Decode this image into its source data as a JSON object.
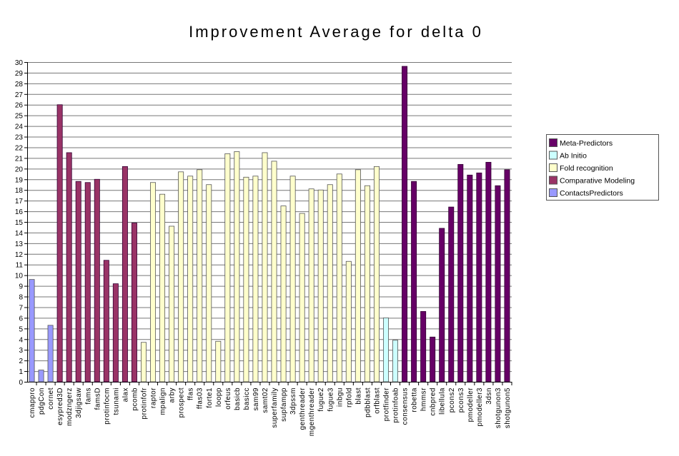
{
  "chart_data": {
    "type": "bar",
    "title": "Improvement Average for delta 0",
    "xlabel": "",
    "ylabel": "",
    "ylim": [
      0,
      30
    ],
    "ytick_step": 1,
    "grid": true,
    "legend_position": "right",
    "groups": [
      {
        "name": "Meta-Predictors",
        "color": "#660066"
      },
      {
        "name": "Ab Initio",
        "color": "#CCFFFF"
      },
      {
        "name": "Fold recognition",
        "color": "#FFFFCC"
      },
      {
        "name": "Comparative Modeling",
        "color": "#993366"
      },
      {
        "name": "ContactsPredictors",
        "color": "#9999FF"
      }
    ],
    "categories": [
      "cmappro",
      "pdgCon",
      "cornet",
      "esypred3D",
      "modzngerz",
      "3djigsaw",
      "fams",
      "famsD",
      "protinfocm",
      "tsunami",
      "alax",
      "pcomb",
      "protinfofr",
      "raptor",
      "mpalign",
      "arby",
      "prospect",
      "ffas",
      "ffas03",
      "forte1",
      "loopp",
      "orfeus",
      "basicb",
      "basicc",
      "sam99",
      "samt02",
      "superfamily",
      "supfampp",
      "3dpssm",
      "genthreader",
      "mgenthreader",
      "fugue2",
      "fugue3",
      "inbgu",
      "rpfold",
      "blast",
      "pdbblast",
      "orfblast",
      "protfinder",
      "protinfoab",
      "consensus",
      "robetta",
      "hmmsr",
      "cnbpred",
      "libellula",
      "pcons2",
      "pcons3",
      "pmodeller",
      "pmodeller3",
      "3dsn",
      "shotgunon3",
      "shotgunon5"
    ],
    "values": [
      9.6,
      1.1,
      5.3,
      26.0,
      21.5,
      18.8,
      18.7,
      19.0,
      11.4,
      9.2,
      20.2,
      14.9,
      3.7,
      18.7,
      17.6,
      14.6,
      19.7,
      19.3,
      19.9,
      18.5,
      3.8,
      21.4,
      21.6,
      19.2,
      19.3,
      21.5,
      20.7,
      16.5,
      19.3,
      15.8,
      18.1,
      18.0,
      18.5,
      19.5,
      11.3,
      19.9,
      18.4,
      20.2,
      6.0,
      3.9,
      29.6,
      18.8,
      6.6,
      4.2,
      14.4,
      16.4,
      20.4,
      19.4,
      19.6,
      20.6,
      18.4,
      19.9
    ],
    "category_groups": [
      "ContactsPredictors",
      "ContactsPredictors",
      "ContactsPredictors",
      "Comparative Modeling",
      "Comparative Modeling",
      "Comparative Modeling",
      "Comparative Modeling",
      "Comparative Modeling",
      "Comparative Modeling",
      "Comparative Modeling",
      "Comparative Modeling",
      "Comparative Modeling",
      "Fold recognition",
      "Fold recognition",
      "Fold recognition",
      "Fold recognition",
      "Fold recognition",
      "Fold recognition",
      "Fold recognition",
      "Fold recognition",
      "Fold recognition",
      "Fold recognition",
      "Fold recognition",
      "Fold recognition",
      "Fold recognition",
      "Fold recognition",
      "Fold recognition",
      "Fold recognition",
      "Fold recognition",
      "Fold recognition",
      "Fold recognition",
      "Fold recognition",
      "Fold recognition",
      "Fold recognition",
      "Fold recognition",
      "Fold recognition",
      "Fold recognition",
      "Fold recognition",
      "Ab Initio",
      "Ab Initio",
      "Meta-Predictors",
      "Meta-Predictors",
      "Meta-Predictors",
      "Meta-Predictors",
      "Meta-Predictors",
      "Meta-Predictors",
      "Meta-Predictors",
      "Meta-Predictors",
      "Meta-Predictors",
      "Meta-Predictors",
      "Meta-Predictors",
      "Meta-Predictors"
    ]
  }
}
